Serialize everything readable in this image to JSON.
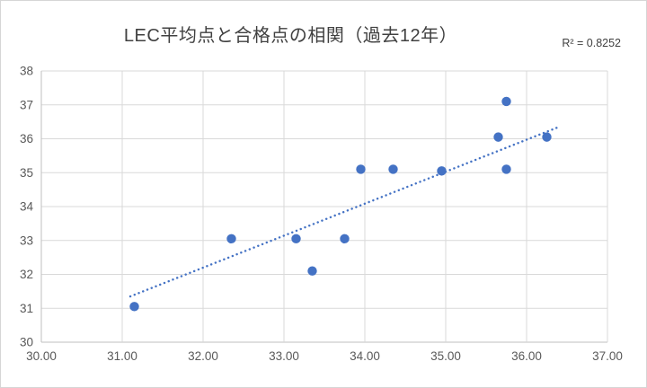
{
  "chart_data": {
    "type": "scatter",
    "title": "LEC平均点と合格点の相関（過去12年）",
    "annotation": "R² = 0.8252",
    "xlabel": "",
    "ylabel": "",
    "xlim": [
      30,
      37
    ],
    "ylim": [
      30,
      38
    ],
    "x_tick_step": 1,
    "y_tick_step": 1,
    "x_ticks": [
      "30.00",
      "31.00",
      "32.00",
      "33.00",
      "34.00",
      "35.00",
      "36.00",
      "37.00"
    ],
    "y_ticks": [
      "30",
      "31",
      "32",
      "33",
      "34",
      "35",
      "36",
      "37",
      "38"
    ],
    "grid": true,
    "legend": false,
    "points": [
      {
        "x": 31.15,
        "y": 31.05
      },
      {
        "x": 32.35,
        "y": 33.05
      },
      {
        "x": 33.15,
        "y": 33.05
      },
      {
        "x": 33.35,
        "y": 32.1
      },
      {
        "x": 33.75,
        "y": 33.05
      },
      {
        "x": 33.95,
        "y": 35.1
      },
      {
        "x": 34.35,
        "y": 35.1
      },
      {
        "x": 34.95,
        "y": 35.05
      },
      {
        "x": 35.65,
        "y": 36.05
      },
      {
        "x": 35.75,
        "y": 37.1
      },
      {
        "x": 35.75,
        "y": 35.1
      },
      {
        "x": 36.25,
        "y": 36.05
      }
    ],
    "trendline": {
      "x1": 31.1,
      "y1": 31.35,
      "x2": 36.4,
      "y2": 36.35,
      "style": "dotted"
    },
    "colors": {
      "point": "#4472C4",
      "trend": "#4472C4",
      "grid": "#D9D9D9",
      "axis_line": "#BFBFBF",
      "axis_text": "#595959",
      "title_text": "#404040"
    }
  }
}
